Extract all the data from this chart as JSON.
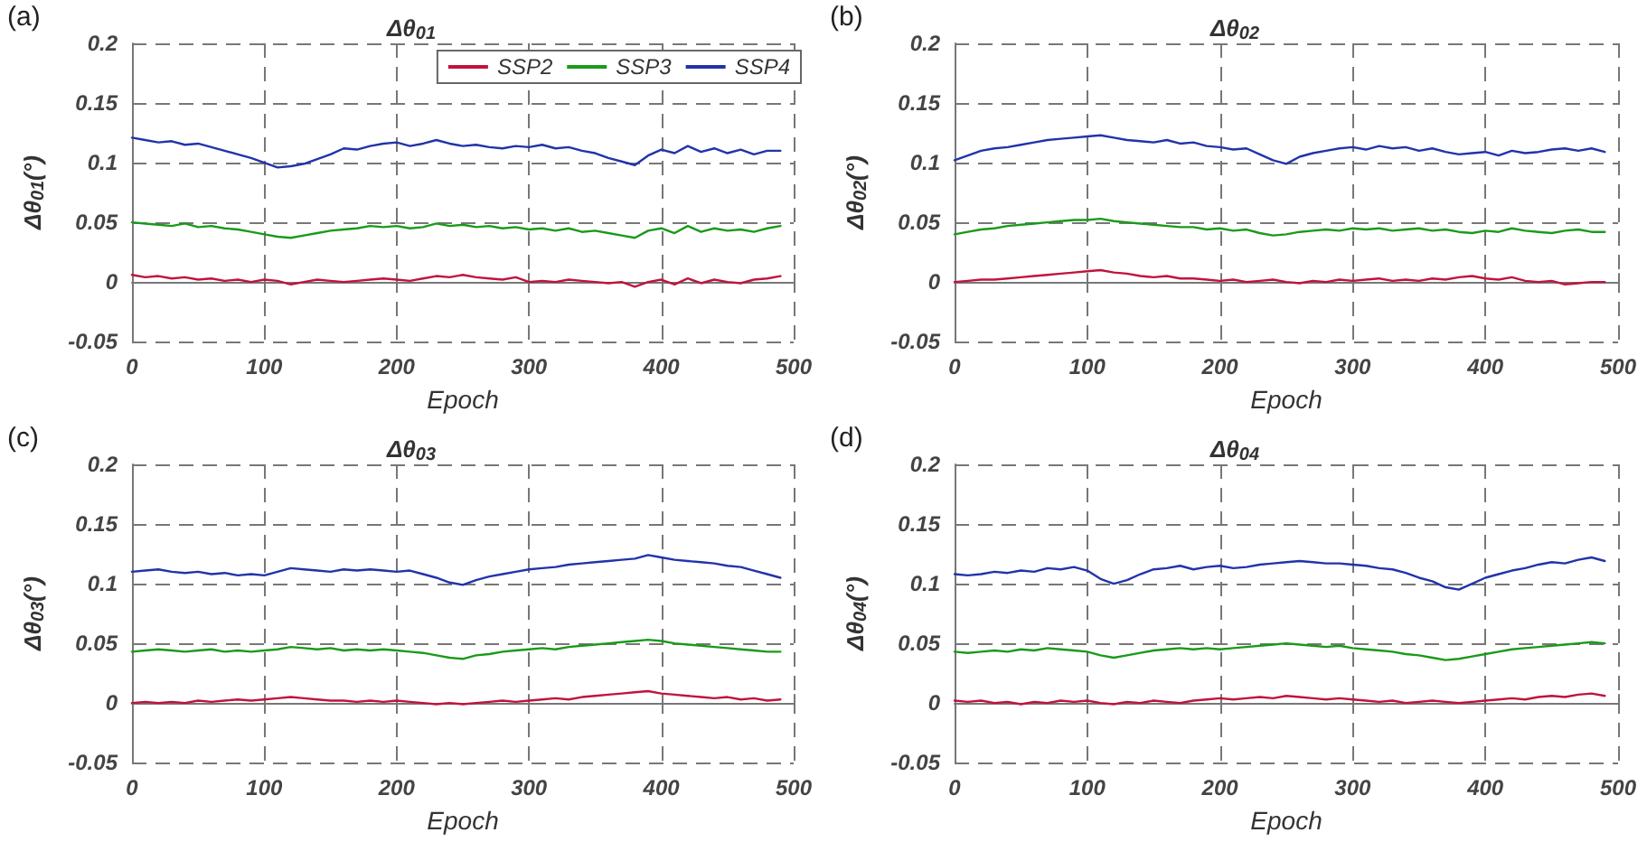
{
  "chart_data": [
    {
      "type": "line",
      "title": "Δθ$_{01}$",
      "xlabel": "Epoch",
      "ylabel": "Δθ$_{01}$(°)",
      "annotations": [
        "(a)"
      ],
      "legend": "top right",
      "grid": true,
      "marker": "none",
      "line_style": "solid",
      "x": [
        0,
        10,
        20,
        30,
        40,
        50,
        60,
        70,
        80,
        90,
        100,
        110,
        120,
        130,
        140,
        150,
        160,
        170,
        180,
        190,
        200,
        210,
        220,
        230,
        240,
        250,
        260,
        270,
        280,
        290,
        300,
        310,
        320,
        330,
        340,
        350,
        360,
        370,
        380,
        390,
        400,
        410,
        420,
        430,
        440,
        450,
        460,
        470,
        480,
        490
      ],
      "xlim": [
        0,
        500
      ],
      "xticks": [
        0,
        100,
        200,
        300,
        400,
        500
      ],
      "ylim": [
        -0.05,
        0.2
      ],
      "yticks": [
        -0.05,
        0,
        0.05,
        0.1,
        0.15,
        0.2
      ],
      "series": [
        {
          "name": "SSP2",
          "color": "#c0143c",
          "values": [
            0.006,
            0.004,
            0.005,
            0.003,
            0.004,
            0.002,
            0.003,
            0.001,
            0.002,
            0.0,
            0.002,
            0.001,
            -0.002,
            0.0,
            0.002,
            0.001,
            0.0,
            0.001,
            0.002,
            0.003,
            0.002,
            0.001,
            0.003,
            0.005,
            0.004,
            0.006,
            0.004,
            0.003,
            0.002,
            0.004,
            0.0,
            0.001,
            0.0,
            0.002,
            0.001,
            0.0,
            -0.001,
            0.0,
            -0.004,
            0.0,
            0.002,
            -0.002,
            0.003,
            -0.001,
            0.002,
            0.0,
            -0.001,
            0.002,
            0.003,
            0.005
          ]
        },
        {
          "name": "SSP3",
          "color": "#1a9a1a",
          "values": [
            0.05,
            0.049,
            0.048,
            0.047,
            0.049,
            0.046,
            0.047,
            0.045,
            0.044,
            0.042,
            0.04,
            0.038,
            0.037,
            0.039,
            0.041,
            0.043,
            0.044,
            0.045,
            0.047,
            0.046,
            0.047,
            0.045,
            0.046,
            0.049,
            0.047,
            0.048,
            0.046,
            0.047,
            0.045,
            0.046,
            0.044,
            0.045,
            0.043,
            0.045,
            0.042,
            0.043,
            0.041,
            0.039,
            0.037,
            0.043,
            0.045,
            0.041,
            0.047,
            0.042,
            0.045,
            0.043,
            0.044,
            0.042,
            0.045,
            0.047
          ]
        },
        {
          "name": "SSP4",
          "color": "#2233aa",
          "values": [
            0.121,
            0.119,
            0.117,
            0.118,
            0.115,
            0.116,
            0.113,
            0.11,
            0.107,
            0.104,
            0.1,
            0.096,
            0.097,
            0.099,
            0.103,
            0.107,
            0.112,
            0.111,
            0.114,
            0.116,
            0.117,
            0.114,
            0.116,
            0.119,
            0.116,
            0.114,
            0.115,
            0.113,
            0.112,
            0.114,
            0.113,
            0.115,
            0.112,
            0.113,
            0.11,
            0.108,
            0.104,
            0.101,
            0.098,
            0.106,
            0.111,
            0.108,
            0.114,
            0.109,
            0.112,
            0.108,
            0.111,
            0.107,
            0.11,
            0.11
          ]
        }
      ]
    },
    {
      "type": "line",
      "title": "Δθ$_{02}$",
      "xlabel": "Epoch",
      "ylabel": "Δθ$_{02}$(°)",
      "annotations": [
        "(b)"
      ],
      "grid": true,
      "marker": "none",
      "line_style": "solid",
      "x": [
        0,
        10,
        20,
        30,
        40,
        50,
        60,
        70,
        80,
        90,
        100,
        110,
        120,
        130,
        140,
        150,
        160,
        170,
        180,
        190,
        200,
        210,
        220,
        230,
        240,
        250,
        260,
        270,
        280,
        290,
        300,
        310,
        320,
        330,
        340,
        350,
        360,
        370,
        380,
        390,
        400,
        410,
        420,
        430,
        440,
        450,
        460,
        470,
        480,
        490
      ],
      "xlim": [
        0,
        500
      ],
      "xticks": [
        0,
        100,
        200,
        300,
        400,
        500
      ],
      "ylim": [
        -0.05,
        0.2
      ],
      "yticks": [
        -0.05,
        0,
        0.05,
        0.1,
        0.15,
        0.2
      ],
      "series": [
        {
          "color": "#c0143c",
          "values": [
            0.0,
            0.001,
            0.002,
            0.002,
            0.003,
            0.004,
            0.005,
            0.006,
            0.007,
            0.008,
            0.009,
            0.01,
            0.008,
            0.007,
            0.005,
            0.004,
            0.005,
            0.003,
            0.003,
            0.002,
            0.001,
            0.002,
            0.0,
            0.001,
            0.002,
            0.0,
            -0.001,
            0.001,
            0.0,
            0.002,
            0.001,
            0.002,
            0.003,
            0.001,
            0.002,
            0.001,
            0.003,
            0.002,
            0.004,
            0.005,
            0.003,
            0.002,
            0.004,
            0.001,
            0.0,
            0.001,
            -0.002,
            -0.001,
            0.0,
            0.0
          ]
        },
        {
          "color": "#1a9a1a",
          "values": [
            0.04,
            0.042,
            0.044,
            0.045,
            0.047,
            0.048,
            0.049,
            0.05,
            0.051,
            0.052,
            0.052,
            0.053,
            0.051,
            0.05,
            0.049,
            0.048,
            0.047,
            0.046,
            0.046,
            0.044,
            0.045,
            0.043,
            0.044,
            0.041,
            0.039,
            0.04,
            0.042,
            0.043,
            0.044,
            0.043,
            0.045,
            0.044,
            0.045,
            0.043,
            0.044,
            0.045,
            0.043,
            0.044,
            0.042,
            0.041,
            0.043,
            0.042,
            0.045,
            0.043,
            0.042,
            0.041,
            0.043,
            0.044,
            0.042,
            0.042
          ]
        },
        {
          "color": "#2233aa",
          "values": [
            0.102,
            0.106,
            0.11,
            0.112,
            0.113,
            0.115,
            0.117,
            0.119,
            0.12,
            0.121,
            0.122,
            0.123,
            0.121,
            0.119,
            0.118,
            0.117,
            0.119,
            0.116,
            0.117,
            0.114,
            0.113,
            0.111,
            0.112,
            0.107,
            0.102,
            0.099,
            0.105,
            0.108,
            0.11,
            0.112,
            0.113,
            0.111,
            0.114,
            0.112,
            0.113,
            0.11,
            0.112,
            0.109,
            0.107,
            0.108,
            0.109,
            0.106,
            0.11,
            0.108,
            0.109,
            0.111,
            0.112,
            0.11,
            0.112,
            0.109
          ]
        }
      ]
    },
    {
      "type": "line",
      "title": "Δθ$_{03}$",
      "xlabel": "Epoch",
      "ylabel": "Δθ$_{03}$(°)",
      "annotations": [
        "(c)"
      ],
      "grid": true,
      "marker": "none",
      "line_style": "solid",
      "x": [
        0,
        10,
        20,
        30,
        40,
        50,
        60,
        70,
        80,
        90,
        100,
        110,
        120,
        130,
        140,
        150,
        160,
        170,
        180,
        190,
        200,
        210,
        220,
        230,
        240,
        250,
        260,
        270,
        280,
        290,
        300,
        310,
        320,
        330,
        340,
        350,
        360,
        370,
        380,
        390,
        400,
        410,
        420,
        430,
        440,
        450,
        460,
        470,
        480,
        490
      ],
      "xlim": [
        0,
        500
      ],
      "xticks": [
        0,
        100,
        200,
        300,
        400,
        500
      ],
      "ylim": [
        -0.05,
        0.2
      ],
      "yticks": [
        -0.05,
        0,
        0.05,
        0.1,
        0.15,
        0.2
      ],
      "series": [
        {
          "color": "#c0143c",
          "values": [
            0.0,
            0.001,
            0.0,
            0.001,
            0.0,
            0.002,
            0.001,
            0.002,
            0.003,
            0.002,
            0.003,
            0.004,
            0.005,
            0.004,
            0.003,
            0.002,
            0.002,
            0.001,
            0.002,
            0.001,
            0.002,
            0.001,
            0.0,
            -0.001,
            0.0,
            -0.001,
            0.0,
            0.001,
            0.002,
            0.001,
            0.002,
            0.003,
            0.004,
            0.003,
            0.005,
            0.006,
            0.007,
            0.008,
            0.009,
            0.01,
            0.008,
            0.007,
            0.006,
            0.005,
            0.004,
            0.005,
            0.003,
            0.004,
            0.002,
            0.003
          ]
        },
        {
          "color": "#1a9a1a",
          "values": [
            0.043,
            0.044,
            0.045,
            0.044,
            0.043,
            0.044,
            0.045,
            0.043,
            0.044,
            0.043,
            0.044,
            0.045,
            0.047,
            0.046,
            0.045,
            0.046,
            0.044,
            0.045,
            0.044,
            0.045,
            0.044,
            0.043,
            0.042,
            0.04,
            0.038,
            0.037,
            0.04,
            0.041,
            0.043,
            0.044,
            0.045,
            0.046,
            0.045,
            0.047,
            0.048,
            0.049,
            0.05,
            0.051,
            0.052,
            0.053,
            0.052,
            0.05,
            0.049,
            0.048,
            0.047,
            0.046,
            0.045,
            0.044,
            0.043,
            0.043
          ]
        },
        {
          "color": "#2233aa",
          "values": [
            0.11,
            0.111,
            0.112,
            0.11,
            0.109,
            0.11,
            0.108,
            0.109,
            0.107,
            0.108,
            0.107,
            0.11,
            0.113,
            0.112,
            0.111,
            0.11,
            0.112,
            0.111,
            0.112,
            0.111,
            0.11,
            0.111,
            0.108,
            0.105,
            0.101,
            0.099,
            0.103,
            0.106,
            0.108,
            0.11,
            0.112,
            0.113,
            0.114,
            0.116,
            0.117,
            0.118,
            0.119,
            0.12,
            0.121,
            0.124,
            0.122,
            0.12,
            0.119,
            0.118,
            0.117,
            0.115,
            0.114,
            0.111,
            0.108,
            0.105
          ]
        }
      ]
    },
    {
      "type": "line",
      "title": "Δθ$_{04}$",
      "xlabel": "Epoch",
      "ylabel": "Δθ$_{04}$(°)",
      "annotations": [
        "(d)"
      ],
      "grid": true,
      "marker": "none",
      "line_style": "solid",
      "x": [
        0,
        10,
        20,
        30,
        40,
        50,
        60,
        70,
        80,
        90,
        100,
        110,
        120,
        130,
        140,
        150,
        160,
        170,
        180,
        190,
        200,
        210,
        220,
        230,
        240,
        250,
        260,
        270,
        280,
        290,
        300,
        310,
        320,
        330,
        340,
        350,
        360,
        370,
        380,
        390,
        400,
        410,
        420,
        430,
        440,
        450,
        460,
        470,
        480,
        490
      ],
      "xlim": [
        0,
        500
      ],
      "xticks": [
        0,
        100,
        200,
        300,
        400,
        500
      ],
      "ylim": [
        -0.05,
        0.2
      ],
      "yticks": [
        -0.05,
        0,
        0.05,
        0.1,
        0.15,
        0.2
      ],
      "series": [
        {
          "color": "#c0143c",
          "values": [
            0.002,
            0.001,
            0.002,
            0.0,
            0.001,
            -0.001,
            0.001,
            0.0,
            0.002,
            0.001,
            0.002,
            0.0,
            -0.001,
            0.001,
            0.0,
            0.002,
            0.001,
            0.0,
            0.002,
            0.003,
            0.004,
            0.003,
            0.004,
            0.005,
            0.004,
            0.006,
            0.005,
            0.004,
            0.003,
            0.004,
            0.003,
            0.002,
            0.001,
            0.002,
            0.0,
            0.001,
            0.002,
            0.001,
            0.0,
            0.001,
            0.002,
            0.003,
            0.004,
            0.003,
            0.005,
            0.006,
            0.005,
            0.007,
            0.008,
            0.006
          ]
        },
        {
          "color": "#1a9a1a",
          "values": [
            0.043,
            0.042,
            0.043,
            0.044,
            0.043,
            0.045,
            0.044,
            0.046,
            0.045,
            0.044,
            0.043,
            0.04,
            0.038,
            0.04,
            0.042,
            0.044,
            0.045,
            0.046,
            0.045,
            0.046,
            0.045,
            0.046,
            0.047,
            0.048,
            0.049,
            0.05,
            0.049,
            0.048,
            0.047,
            0.048,
            0.046,
            0.045,
            0.044,
            0.043,
            0.041,
            0.04,
            0.038,
            0.036,
            0.037,
            0.039,
            0.041,
            0.043,
            0.045,
            0.046,
            0.047,
            0.048,
            0.049,
            0.05,
            0.051,
            0.05
          ]
        },
        {
          "color": "#2233aa",
          "values": [
            0.108,
            0.107,
            0.108,
            0.11,
            0.109,
            0.111,
            0.11,
            0.113,
            0.112,
            0.114,
            0.111,
            0.104,
            0.1,
            0.103,
            0.108,
            0.112,
            0.113,
            0.115,
            0.112,
            0.114,
            0.115,
            0.113,
            0.114,
            0.116,
            0.117,
            0.118,
            0.119,
            0.118,
            0.117,
            0.117,
            0.116,
            0.115,
            0.113,
            0.112,
            0.109,
            0.105,
            0.102,
            0.097,
            0.095,
            0.1,
            0.105,
            0.108,
            0.111,
            0.113,
            0.116,
            0.118,
            0.117,
            0.12,
            0.122,
            0.119
          ]
        }
      ]
    }
  ]
}
